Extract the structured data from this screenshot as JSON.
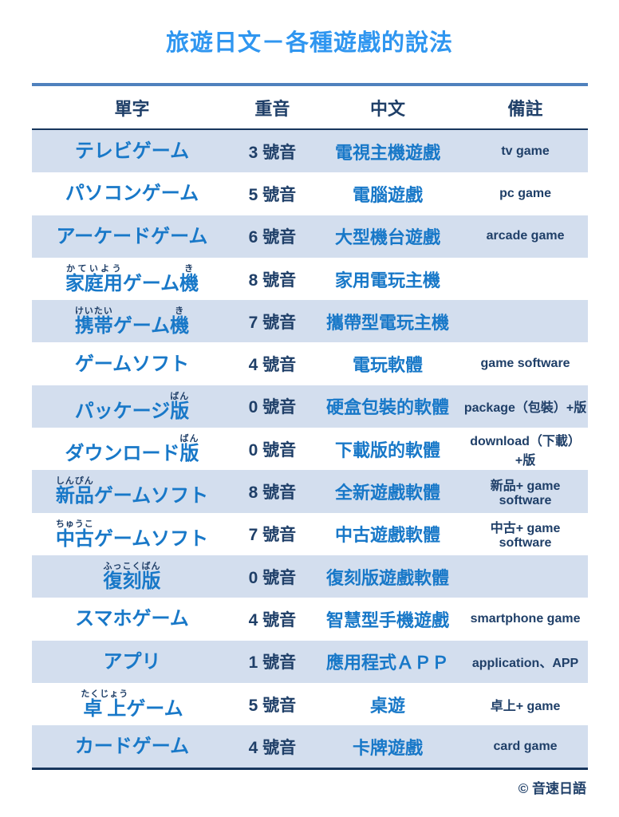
{
  "page": {
    "title": "旅遊日文－各種遊戲的說法",
    "copyright": "© 音速日語"
  },
  "colors": {
    "title_blue": "#2f96f0",
    "word_blue": "#1878c8",
    "navy_text": "#1f3f68",
    "row_shade": "#d3deee",
    "top_rule_blue": "#4f81bd",
    "rule_navy": "#17365d"
  },
  "table": {
    "headers": [
      "單字",
      "重音",
      "中文",
      "備註"
    ],
    "rows": [
      {
        "word": [
          {
            "t": "テレビゲーム",
            "r": ""
          }
        ],
        "accent": "3 號音",
        "chinese": "電視主機遊戲",
        "note": "tv game"
      },
      {
        "word": [
          {
            "t": "パソコンゲーム",
            "r": ""
          }
        ],
        "accent": "5 號音",
        "chinese": "電腦遊戲",
        "note": "pc game"
      },
      {
        "word": [
          {
            "t": "アーケードゲーム",
            "r": ""
          }
        ],
        "accent": "6 號音",
        "chinese": "大型機台遊戲",
        "note": "arcade game"
      },
      {
        "word": [
          {
            "t": "家庭用",
            "r": "かていよう"
          },
          {
            "t": "ゲーム",
            "r": ""
          },
          {
            "t": "機",
            "r": "き"
          }
        ],
        "accent": "8 號音",
        "chinese": "家用電玩主機",
        "note": ""
      },
      {
        "word": [
          {
            "t": "携帯",
            "r": "けいたい"
          },
          {
            "t": "ゲーム",
            "r": ""
          },
          {
            "t": "機",
            "r": "き"
          }
        ],
        "accent": "7 號音",
        "chinese": "攜帶型電玩主機",
        "note": ""
      },
      {
        "word": [
          {
            "t": "ゲームソフト",
            "r": ""
          }
        ],
        "accent": "4 號音",
        "chinese": "電玩軟體",
        "note": "game software"
      },
      {
        "word": [
          {
            "t": "パッケージ",
            "r": ""
          },
          {
            "t": "版",
            "r": "ばん"
          }
        ],
        "accent": "0 號音",
        "chinese": "硬盒包裝的軟體",
        "note": "package（包裝）+版"
      },
      {
        "word": [
          {
            "t": "ダウンロード",
            "r": ""
          },
          {
            "t": "版",
            "r": "ばん"
          }
        ],
        "accent": "0 號音",
        "chinese": "下載版的軟體",
        "note": "download（下載）+版"
      },
      {
        "word": [
          {
            "t": "新品",
            "r": "しんぴん"
          },
          {
            "t": "ゲームソフト",
            "r": ""
          }
        ],
        "accent": "8 號音",
        "chinese": "全新遊戲軟體",
        "note": "新品+ game software"
      },
      {
        "word": [
          {
            "t": "中古",
            "r": "ちゅうこ"
          },
          {
            "t": "ゲームソフト",
            "r": ""
          }
        ],
        "accent": "7 號音",
        "chinese": "中古遊戲軟體",
        "note": "中古+ game software"
      },
      {
        "word": [
          {
            "t": "復刻版",
            "r": "ふっこくばん"
          }
        ],
        "accent": "0 號音",
        "chinese": "復刻版遊戲軟體",
        "note": ""
      },
      {
        "word": [
          {
            "t": "スマホゲーム",
            "r": ""
          }
        ],
        "accent": "4 號音",
        "chinese": "智慧型手機遊戲",
        "note": "smartphone game"
      },
      {
        "word": [
          {
            "t": "アプリ",
            "r": ""
          }
        ],
        "accent": "1 號音",
        "chinese": "應用程式ＡＰＰ",
        "note": "application、APP"
      },
      {
        "word": [
          {
            "t": "卓上",
            "r": "たくじょう"
          },
          {
            "t": "ゲーム",
            "r": ""
          }
        ],
        "accent": "5 號音",
        "chinese": "桌遊",
        "note": "卓上+ game"
      },
      {
        "word": [
          {
            "t": "カードゲーム",
            "r": ""
          }
        ],
        "accent": "4 號音",
        "chinese": "卡牌遊戲",
        "note": "card game"
      }
    ]
  }
}
